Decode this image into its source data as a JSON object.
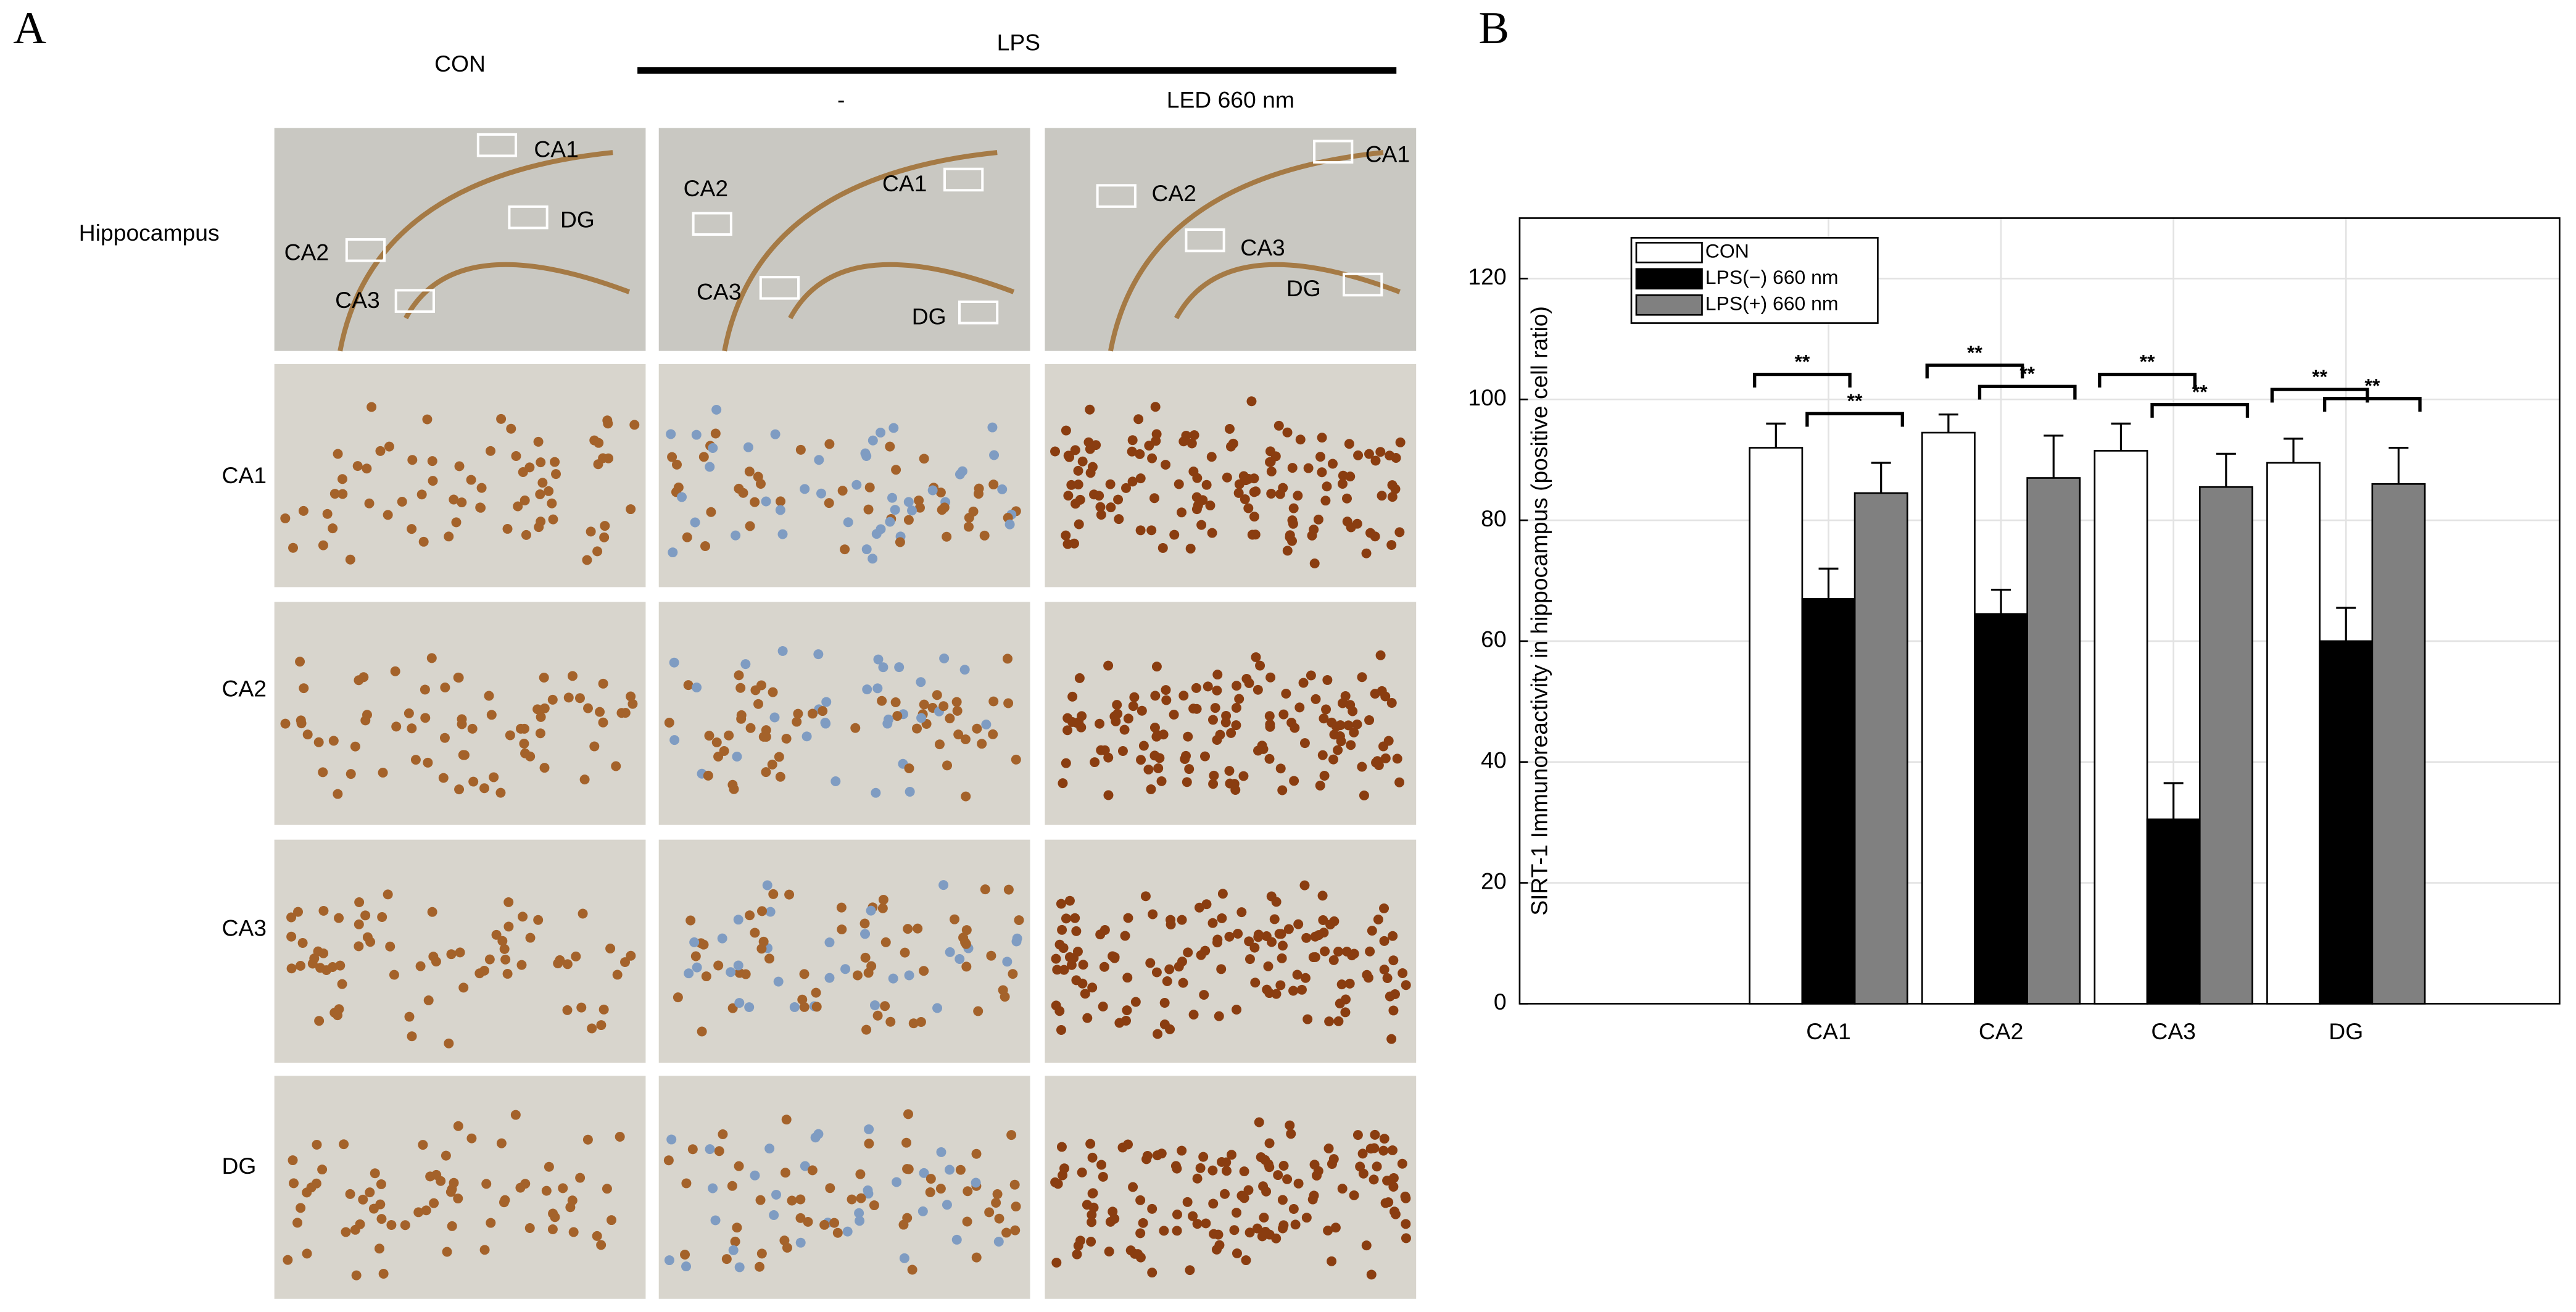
{
  "panel_a": {
    "label": "A",
    "group": "LPS",
    "columns": [
      "CON",
      "-",
      "LED 660 nm"
    ],
    "rows": [
      "Hippocampus",
      "CA1",
      "CA2",
      "CA3",
      "DG"
    ],
    "regions": [
      [
        "CA1",
        "DG",
        "CA2",
        "CA3"
      ],
      [
        "CA2",
        "CA1",
        "CA3",
        "DG"
      ],
      [
        "CA1",
        "CA2",
        "CA3",
        "DG"
      ]
    ]
  },
  "chart_data": {
    "type": "bar",
    "panel_label": "B",
    "ylabel": "SIRT-1 Immunoreactivity in hippocampus (positive cell ratio)",
    "categories": [
      "CA1",
      "CA2",
      "CA3",
      "DG"
    ],
    "series": [
      {
        "name": "CON",
        "color": "#ffffff",
        "values": [
          92,
          94.5,
          91.5,
          89.5
        ],
        "errors": [
          4,
          3,
          4.5,
          4
        ]
      },
      {
        "name": "LPS(−) 660 nm",
        "color": "#000000",
        "values": [
          67,
          64.5,
          30.5,
          60
        ],
        "errors": [
          5,
          4,
          6,
          5.5
        ]
      },
      {
        "name": "LPS(+) 660 nm",
        "color": "#808080",
        "values": [
          84.5,
          87,
          85.5,
          86
        ],
        "errors": [
          5,
          7,
          5.5,
          6
        ]
      }
    ],
    "annotations": [
      "**",
      "**",
      "**",
      "**",
      "**",
      "**",
      "**",
      "**"
    ],
    "ylim": [
      0,
      130
    ],
    "yticks": [
      0,
      20,
      40,
      60,
      80,
      100,
      120
    ],
    "grid": true,
    "legend": "upper left"
  }
}
